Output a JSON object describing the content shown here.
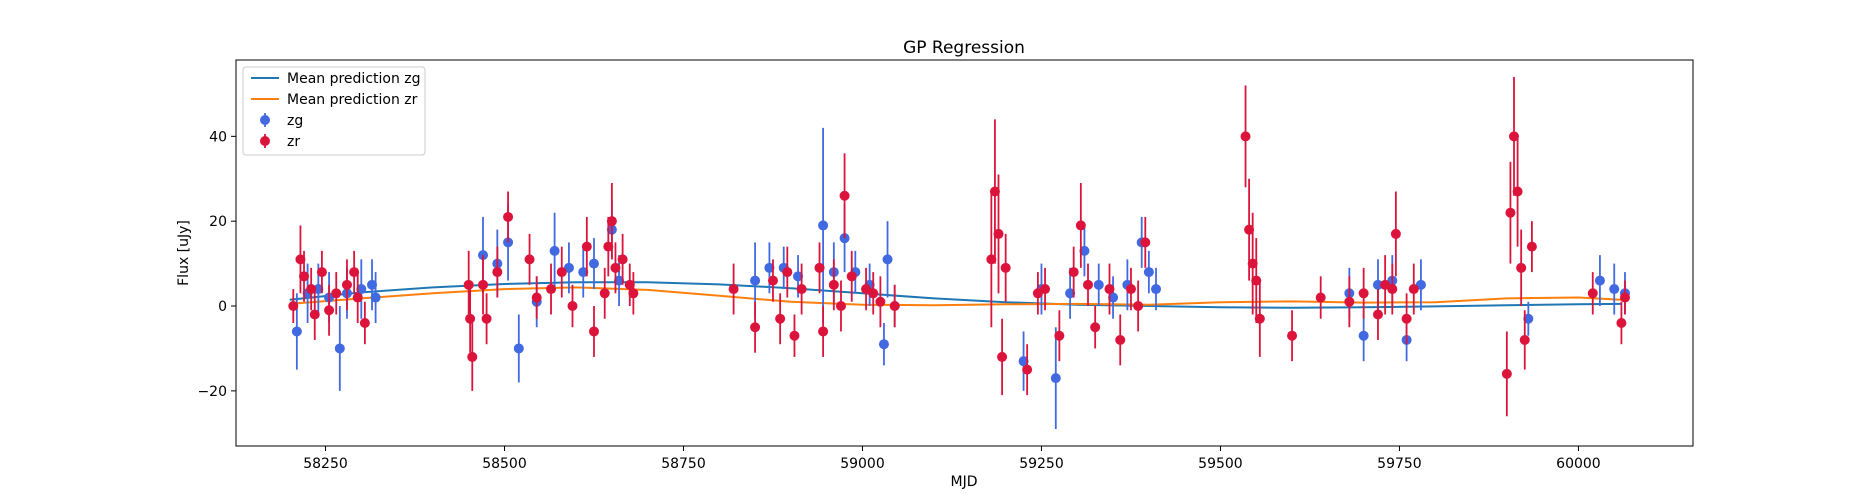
{
  "chart_data": {
    "type": "scatter",
    "title": "GP Regression",
    "xlabel": "MJD",
    "ylabel": "Flux [uJy]",
    "xlim": [
      58125,
      60160
    ],
    "ylim": [
      -33,
      58
    ],
    "xticks": [
      58250,
      58500,
      58750,
      59000,
      59250,
      59500,
      59750,
      60000
    ],
    "yticks": [
      -20,
      0,
      20,
      40
    ],
    "legend_position": "upper left",
    "grid": false,
    "colors": {
      "zg_line": "#1f77b4",
      "zr_line": "#ff7f0e",
      "zg_points": "#4169e1",
      "zr_points": "#dc143c"
    },
    "legend": [
      {
        "label": "Mean prediction zg",
        "kind": "line",
        "color": "#1f77b4"
      },
      {
        "label": "Mean prediction zr",
        "kind": "line",
        "color": "#ff7f0e"
      },
      {
        "label": "zg",
        "kind": "errorbar",
        "color": "#4169e1"
      },
      {
        "label": "zr",
        "kind": "errorbar",
        "color": "#dc143c"
      }
    ],
    "series": [
      {
        "name": "Mean prediction zg",
        "kind": "line",
        "x": [
          58200,
          58300,
          58400,
          58500,
          58600,
          58700,
          58800,
          58900,
          59000,
          59100,
          59200,
          59300,
          59400,
          59500,
          59600,
          59700,
          59800,
          59900,
          60000,
          60060
        ],
        "y": [
          1.5,
          3.2,
          4.4,
          5.2,
          5.6,
          5.6,
          5.1,
          4.2,
          3.0,
          1.8,
          0.9,
          0.3,
          0.0,
          -0.3,
          -0.4,
          -0.3,
          -0.1,
          0.2,
          0.4,
          0.5
        ]
      },
      {
        "name": "Mean prediction zr",
        "kind": "line",
        "x": [
          58200,
          58300,
          58400,
          58500,
          58600,
          58700,
          58800,
          58900,
          59000,
          59100,
          59200,
          59300,
          59400,
          59500,
          59600,
          59700,
          59800,
          59900,
          60000,
          60060
        ],
        "y": [
          0.5,
          1.8,
          3.0,
          4.0,
          4.4,
          3.8,
          2.4,
          1.0,
          0.3,
          0.2,
          0.4,
          0.5,
          0.3,
          0.9,
          1.1,
          0.8,
          0.9,
          1.8,
          2.0,
          1.5
        ]
      },
      {
        "name": "zg",
        "kind": "errorbar",
        "x": [
          58210,
          58225,
          58240,
          58255,
          58270,
          58280,
          58300,
          58315,
          58320,
          58470,
          58490,
          58505,
          58520,
          58545,
          58570,
          58590,
          58610,
          58625,
          58650,
          58660,
          58850,
          58870,
          58890,
          58910,
          58945,
          58960,
          58975,
          58990,
          59010,
          59030,
          59035,
          59045,
          59225,
          59250,
          59270,
          59290,
          59310,
          59330,
          59350,
          59370,
          59390,
          59400,
          59410,
          59680,
          59700,
          59720,
          59740,
          59760,
          59780,
          59930,
          60030,
          60050,
          60065
        ],
        "y": [
          -6,
          3,
          4,
          2,
          -10,
          3,
          4,
          5,
          2,
          12,
          10,
          15,
          -10,
          1,
          13,
          9,
          8,
          10,
          18,
          6,
          6,
          9,
          9,
          7,
          19,
          8,
          16,
          8,
          5,
          -9,
          11,
          0,
          -13,
          4,
          -17,
          3,
          13,
          5,
          2,
          5,
          15,
          8,
          4,
          3,
          -7,
          5,
          6,
          -8,
          5,
          -3,
          6,
          4,
          3
        ],
        "err": [
          9,
          7,
          6,
          6,
          10,
          6,
          7,
          6,
          6,
          9,
          8,
          9,
          8,
          6,
          9,
          6,
          6,
          6,
          7,
          6,
          9,
          6,
          5,
          5,
          23,
          7,
          8,
          5,
          5,
          5,
          9,
          5,
          7,
          6,
          12,
          6,
          6,
          5,
          5,
          6,
          6,
          5,
          5,
          6,
          6,
          6,
          6,
          5,
          6,
          4,
          6,
          6,
          5
        ]
      },
      {
        "name": "zr",
        "kind": "errorbar",
        "x": [
          58205,
          58215,
          58220,
          58230,
          58235,
          58245,
          58255,
          58265,
          58280,
          58290,
          58295,
          58305,
          58450,
          58452,
          58455,
          58470,
          58475,
          58490,
          58505,
          58535,
          58545,
          58565,
          58580,
          58595,
          58615,
          58625,
          58640,
          58645,
          58650,
          58655,
          58665,
          58675,
          58680,
          58820,
          58850,
          58875,
          58885,
          58895,
          58905,
          58915,
          58940,
          58945,
          58960,
          58970,
          58975,
          58985,
          59005,
          59015,
          59025,
          59045,
          59180,
          59185,
          59190,
          59195,
          59200,
          59230,
          59245,
          59255,
          59275,
          59295,
          59305,
          59315,
          59325,
          59345,
          59360,
          59375,
          59385,
          59395,
          59535,
          59540,
          59545,
          59550,
          59555,
          59600,
          59640,
          59680,
          59700,
          59720,
          59730,
          59740,
          59745,
          59760,
          59770,
          59900,
          59905,
          59910,
          59915,
          59920,
          59925,
          59935,
          60020,
          60060,
          60065
        ],
        "y": [
          0,
          11,
          7,
          4,
          -2,
          8,
          -1,
          3,
          5,
          8,
          2,
          -4,
          5,
          -3,
          -12,
          5,
          -3,
          8,
          21,
          11,
          2,
          4,
          8,
          0,
          14,
          -6,
          3,
          14,
          20,
          9,
          11,
          5,
          3,
          4,
          -5,
          6,
          -3,
          8,
          -7,
          4,
          9,
          -6,
          5,
          0,
          26,
          7,
          4,
          3,
          1,
          0,
          11,
          27,
          17,
          -12,
          9,
          -15,
          3,
          4,
          -7,
          8,
          19,
          5,
          -5,
          4,
          -8,
          4,
          0,
          15,
          40,
          18,
          10,
          6,
          -3,
          -7,
          2,
          1,
          3,
          -2,
          5,
          4,
          17,
          -3,
          4,
          -16,
          22,
          40,
          27,
          9,
          -8,
          14,
          3,
          -4,
          2
        ],
        "err": [
          4,
          8,
          6,
          5,
          6,
          5,
          6,
          5,
          6,
          5,
          6,
          5,
          8,
          8,
          8,
          7,
          6,
          6,
          6,
          6,
          5,
          6,
          6,
          5,
          7,
          6,
          6,
          7,
          9,
          6,
          6,
          5,
          5,
          6,
          6,
          5,
          6,
          6,
          5,
          6,
          6,
          6,
          6,
          6,
          10,
          6,
          5,
          5,
          6,
          5,
          16,
          17,
          14,
          9,
          8,
          6,
          5,
          5,
          6,
          6,
          10,
          5,
          5,
          6,
          6,
          5,
          6,
          6,
          12,
          12,
          12,
          10,
          9,
          6,
          5,
          6,
          6,
          6,
          7,
          6,
          10,
          6,
          6,
          10,
          12,
          14,
          13,
          9,
          7,
          6,
          5,
          5,
          4
        ]
      }
    ]
  }
}
